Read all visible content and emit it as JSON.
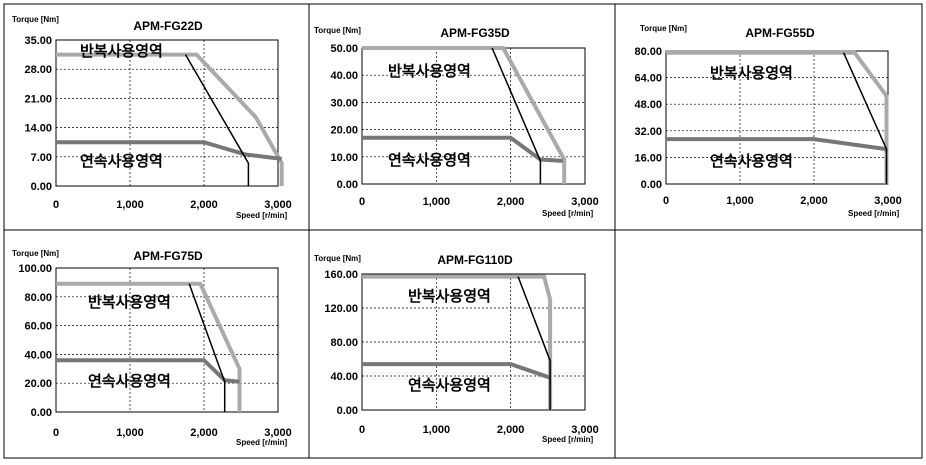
{
  "colors": {
    "repeated_curve": "#aaaaaa",
    "continuous_curve": "#777777",
    "boundary_line": "#000000"
  },
  "chart_data": [
    {
      "type": "line",
      "title": "APM-FG22D",
      "ylabel": "Torque [Nm]",
      "xlabel": "Speed [r/min]",
      "xlim": [
        0,
        3000
      ],
      "ylim": [
        0,
        35
      ],
      "xticks": [
        "0",
        "1,000",
        "2,000",
        "3,000"
      ],
      "yticks": [
        "0.00",
        "7.00",
        "14.00",
        "21.00",
        "28.00",
        "35.00"
      ],
      "grid": true,
      "annotations": [
        "반복사용영역",
        "연속사용영역"
      ],
      "series": [
        {
          "values": [
            [
              0,
              31.5
            ],
            [
              1900,
              31.5
            ],
            [
              2700,
              16.5
            ],
            [
              3050,
              5.5
            ],
            [
              3050,
              0
            ]
          ]
        },
        {
          "values": [
            [
              0,
              10.5
            ],
            [
              2000,
              10.5
            ],
            [
              2550,
              7.6
            ],
            [
              3050,
              6.5
            ]
          ]
        },
        {
          "values": [
            [
              1750,
              31.5
            ],
            [
              2600,
              5.5
            ],
            [
              2600,
              0
            ]
          ]
        }
      ]
    },
    {
      "type": "line",
      "title": "APM-FG35D",
      "ylabel": "Torque [Nm]",
      "xlabel": "Speed [r/min]",
      "xlim": [
        0,
        3000
      ],
      "ylim": [
        0,
        50
      ],
      "xticks": [
        "0",
        "1,000",
        "2,000",
        "3,000"
      ],
      "yticks": [
        "0.00",
        "10.00",
        "20.00",
        "30.00",
        "40.00",
        "50.00"
      ],
      "grid": true,
      "annotations": [
        "반복사용영역",
        "연속사용영역"
      ],
      "series": [
        {
          "values": [
            [
              0,
              50
            ],
            [
              1900,
              50
            ],
            [
              2720,
              9
            ],
            [
              2720,
              0
            ]
          ]
        },
        {
          "values": [
            [
              0,
              17
            ],
            [
              2000,
              17
            ],
            [
              2400,
              9
            ],
            [
              2700,
              8.5
            ]
          ]
        },
        {
          "values": [
            [
              1750,
              50
            ],
            [
              2400,
              8.5
            ],
            [
              2400,
              0
            ]
          ]
        }
      ]
    },
    {
      "type": "line",
      "title": "APM-FG55D",
      "ylabel": "Torque [Nm]",
      "xlabel": "Speed [r/min]",
      "xlim": [
        0,
        3000
      ],
      "ylim": [
        0,
        80
      ],
      "xticks": [
        "0",
        "1,000",
        "2,000",
        "3,000"
      ],
      "yticks": [
        "0.00",
        "16.00",
        "32.00",
        "48.00",
        "64.00",
        "80.00"
      ],
      "grid": true,
      "annotations": [
        "반복사용영역",
        "연속사용영역"
      ],
      "series": [
        {
          "values": [
            [
              0,
              79
            ],
            [
              2550,
              79
            ],
            [
              2980,
              53
            ],
            [
              2980,
              0
            ]
          ]
        },
        {
          "values": [
            [
              0,
              27
            ],
            [
              2000,
              27
            ],
            [
              2980,
              21
            ]
          ]
        },
        {
          "values": [
            [
              2400,
              79
            ],
            [
              2980,
              21
            ],
            [
              2980,
              0
            ]
          ]
        }
      ]
    },
    {
      "type": "line",
      "title": "APM-FG75D",
      "ylabel": "Torque [Nm]",
      "xlabel": "Speed [r/min]",
      "xlim": [
        0,
        3000
      ],
      "ylim": [
        0,
        100
      ],
      "xticks": [
        "0",
        "1,000",
        "2,000",
        "3,000"
      ],
      "yticks": [
        "0.00",
        "20.00",
        "40.00",
        "60.00",
        "80.00",
        "100.00"
      ],
      "grid": true,
      "annotations": [
        "반복사용영역",
        "연속사용영역"
      ],
      "series": [
        {
          "values": [
            [
              0,
              89
            ],
            [
              1950,
              89
            ],
            [
              2480,
              30
            ],
            [
              2480,
              0
            ]
          ]
        },
        {
          "values": [
            [
              0,
              36
            ],
            [
              2000,
              36
            ],
            [
              2280,
              22
            ],
            [
              2480,
              21
            ]
          ]
        },
        {
          "values": [
            [
              1800,
              89
            ],
            [
              2280,
              21
            ],
            [
              2280,
              0
            ]
          ]
        }
      ]
    },
    {
      "type": "line",
      "title": "APM-FG110D",
      "ylabel": "Torque [Nm]",
      "xlabel": "Speed [r/min]",
      "xlim": [
        0,
        3000
      ],
      "ylim": [
        0,
        160
      ],
      "xticks": [
        "0",
        "1,000",
        "2,000",
        "3,000"
      ],
      "yticks": [
        "0.00",
        "40.00",
        "80.00",
        "120.00",
        "160.00"
      ],
      "grid": true,
      "annotations": [
        "반복사용영역",
        "연속사용영역"
      ],
      "series": [
        {
          "values": [
            [
              0,
              157
            ],
            [
              2450,
              157
            ],
            [
              2530,
              130
            ],
            [
              2530,
              0
            ]
          ]
        },
        {
          "values": [
            [
              0,
              54
            ],
            [
              2000,
              54
            ],
            [
              2530,
              38
            ]
          ]
        },
        {
          "values": [
            [
              2100,
              157
            ],
            [
              2530,
              58
            ],
            [
              2530,
              0
            ]
          ]
        }
      ]
    }
  ]
}
